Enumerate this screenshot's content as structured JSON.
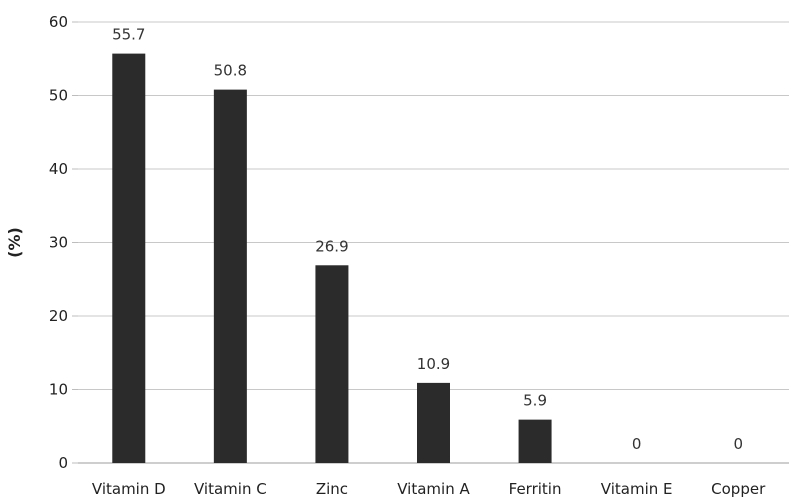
{
  "chart_data": {
    "type": "bar",
    "categories": [
      "Vitamin D",
      "Vitamin C",
      "Zinc",
      "Vitamin A",
      "Ferritin",
      "Vitamin E",
      "Copper"
    ],
    "values": [
      55.7,
      50.8,
      26.9,
      10.9,
      5.9,
      0,
      0
    ],
    "data_labels": [
      "55.7",
      "50.8",
      "26.9",
      "10.9",
      "5.9",
      "0",
      "0"
    ],
    "title": "",
    "xlabel": "",
    "ylabel": "(%)",
    "ylim": [
      0,
      60
    ],
    "yticks": [
      0,
      10,
      20,
      30,
      40,
      50,
      60
    ],
    "grid": true,
    "legend": "none",
    "colors": {
      "bar": "#2b2b2b",
      "grid": "#c8c8c8",
      "axis": "#bdbdbd"
    }
  }
}
